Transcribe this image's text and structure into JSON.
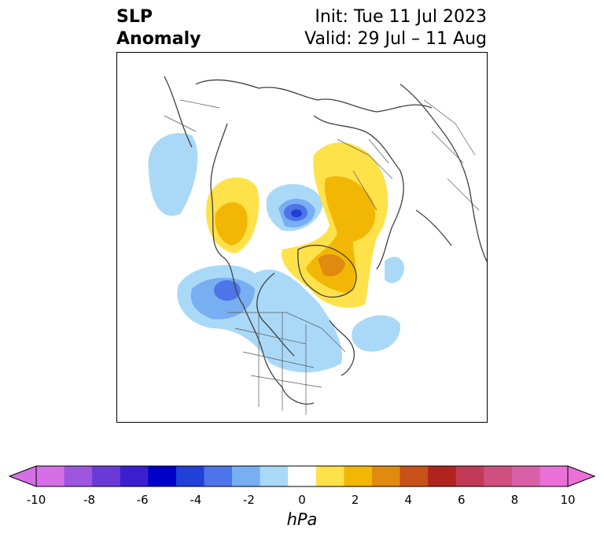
{
  "header": {
    "title_line1": "SLP",
    "title_line2": "Anomaly",
    "init": "Init: Tue 11 Jul 2023",
    "valid": "Valid: 29 Jul – 11 Aug"
  },
  "colorbar": {
    "label": "hPa",
    "ticks": [
      "-10",
      "-8",
      "-6",
      "-4",
      "-2",
      "0",
      "2",
      "4",
      "6",
      "8",
      "10"
    ],
    "colors": [
      "#d46fe6",
      "#9e55e0",
      "#6a3ad8",
      "#3b1fcf",
      "#0000c8",
      "#2140d8",
      "#4d74e8",
      "#78aef2",
      "#aad9f8",
      "#ffffff",
      "#ffe14a",
      "#f2b705",
      "#e08a10",
      "#c75116",
      "#b0231f",
      "#c23a55",
      "#cf4f7e",
      "#d960a8",
      "#e870d8"
    ],
    "extend_low_color": "#d46fe6",
    "extend_high_color": "#e870d8"
  }
}
